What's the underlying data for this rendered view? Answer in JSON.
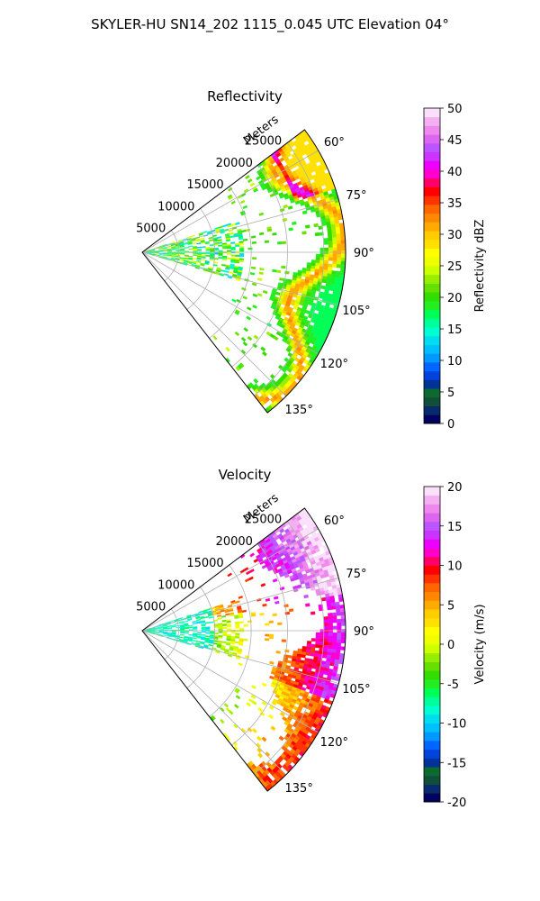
{
  "figure": {
    "suptitle": "SKYLER-HU  SN14_202  1115_0.045 UTC Elevation 04°"
  },
  "chart_data": [
    {
      "type": "heatmap",
      "projection": "polar-sector",
      "title": "Reflectivity",
      "range_label": "Meters",
      "range_ticks": [
        "5000",
        "10000",
        "15000",
        "20000",
        "25000"
      ],
      "range_max": 28000,
      "azimuth_range": [
        53,
        142
      ],
      "azimuth_ticks": [
        "60°",
        "75°",
        "90°",
        "105°",
        "120°",
        "135°"
      ],
      "azimuth_tick_values": [
        60,
        75,
        90,
        105,
        120,
        135
      ],
      "grid": true,
      "colorbar": {
        "label": "Reflectivity dBZ",
        "vmin": 0,
        "vmax": 50,
        "ticks": [
          "0",
          "5",
          "10",
          "15",
          "20",
          "25",
          "30",
          "35",
          "40",
          "45",
          "50"
        ],
        "colors": [
          "#02035e",
          "#0a2a70",
          "#10503a",
          "#0c6a2e",
          "#003399",
          "#0044dd",
          "#0066ff",
          "#0099ff",
          "#00bfff",
          "#00ddee",
          "#00ffd0",
          "#00ff99",
          "#00ff55",
          "#22ee22",
          "#33dd00",
          "#66e000",
          "#99ee00",
          "#ccff00",
          "#eeff00",
          "#ffff00",
          "#ffe000",
          "#ffcc00",
          "#ffaa00",
          "#ff8800",
          "#ff6600",
          "#ff3300",
          "#ff0000",
          "#ff0066",
          "#ff00cc",
          "#ee00ff",
          "#cc33ff",
          "#bb55ff",
          "#dd66ee",
          "#ee88ee",
          "#f4b0f0",
          "#fbe0fb"
        ]
      }
    },
    {
      "type": "heatmap",
      "projection": "polar-sector",
      "title": "Velocity",
      "range_label": "Meters",
      "range_ticks": [
        "5000",
        "10000",
        "15000",
        "20000",
        "25000"
      ],
      "range_max": 28000,
      "azimuth_range": [
        53,
        142
      ],
      "azimuth_ticks": [
        "60°",
        "75°",
        "90°",
        "105°",
        "120°",
        "135°"
      ],
      "azimuth_tick_values": [
        60,
        75,
        90,
        105,
        120,
        135
      ],
      "grid": true,
      "colorbar": {
        "label": "Velocity (m/s)",
        "vmin": -20,
        "vmax": 20,
        "ticks": [
          "-20",
          "-15",
          "-10",
          "-5",
          "0",
          "5",
          "10",
          "15",
          "20"
        ],
        "colors": [
          "#02035e",
          "#0a2a70",
          "#10503a",
          "#0c6a2e",
          "#003399",
          "#0044dd",
          "#0066ff",
          "#0099ff",
          "#00bfff",
          "#00ddee",
          "#00ffd0",
          "#00ff99",
          "#00ff55",
          "#22ee22",
          "#33dd00",
          "#66e000",
          "#99ee00",
          "#ccff00",
          "#eeff00",
          "#ffff00",
          "#ffe000",
          "#ffcc00",
          "#ffaa00",
          "#ff8800",
          "#ff6600",
          "#ff3300",
          "#ff0000",
          "#ff0066",
          "#ff00cc",
          "#ee00ff",
          "#cc33ff",
          "#bb55ff",
          "#dd66ee",
          "#ee88ee",
          "#f4b0f0",
          "#fbe0fb"
        ]
      }
    }
  ]
}
